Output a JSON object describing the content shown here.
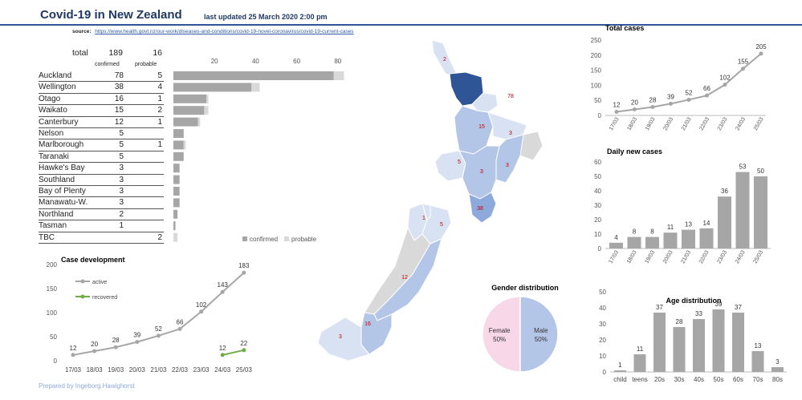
{
  "header": {
    "title": "Covid-19 in New Zealand",
    "updated": "last updated 25 March 2020  2:00 pm",
    "source_label": "source:",
    "source_url": "https://www.health.govt.nz/our-work/diseases-and-conditions/covid-19-novel-coronavirus/covid-19-current-cases"
  },
  "totals": {
    "label": "total",
    "confirmed": "189",
    "probable": "16",
    "confirmed_label": "confirmed",
    "probable_label": "probable"
  },
  "regions": [
    {
      "name": "Auckland",
      "confirmed": "78",
      "probable": "5"
    },
    {
      "name": "Wellington",
      "confirmed": "38",
      "probable": "4"
    },
    {
      "name": "Otago",
      "confirmed": "16",
      "probable": "1"
    },
    {
      "name": "Waikato",
      "confirmed": "15",
      "probable": "2"
    },
    {
      "name": "Canterbury",
      "confirmed": "12",
      "probable": "1"
    },
    {
      "name": "Nelson",
      "confirmed": "5",
      "probable": ""
    },
    {
      "name": "Marlborough",
      "confirmed": "5",
      "probable": "1"
    },
    {
      "name": "Taranaki",
      "confirmed": "5",
      "probable": ""
    },
    {
      "name": "Hawke's Bay",
      "confirmed": "3",
      "probable": ""
    },
    {
      "name": "Southland",
      "confirmed": "3",
      "probable": ""
    },
    {
      "name": "Bay of Plenty",
      "confirmed": "3",
      "probable": ""
    },
    {
      "name": "Manawatu-W.",
      "confirmed": "3",
      "probable": ""
    },
    {
      "name": "Northland",
      "confirmed": "2",
      "probable": ""
    },
    {
      "name": "Tasman",
      "confirmed": "1",
      "probable": ""
    },
    {
      "name": "TBC",
      "confirmed": "",
      "probable": "2"
    }
  ],
  "map_labels": [
    {
      "text": "2",
      "region": "Northland"
    },
    {
      "text": "78",
      "region": "Auckland"
    },
    {
      "text": "15",
      "region": "Waikato"
    },
    {
      "text": "3",
      "region": "Bay of Plenty"
    },
    {
      "text": "5",
      "region": "Taranaki"
    },
    {
      "text": "3",
      "region": "Manawatu-W."
    },
    {
      "text": "3",
      "region": "Hawke's Bay"
    },
    {
      "text": "38",
      "region": "Wellington"
    },
    {
      "text": "1",
      "region": "Tasman"
    },
    {
      "text": "5",
      "region": "Marlborough"
    },
    {
      "text": "12",
      "region": "Canterbury"
    },
    {
      "text": "16",
      "region": "Otago"
    },
    {
      "text": "3",
      "region": "Southland"
    }
  ],
  "footer": "Prepared by Ingeborg Hawighorst",
  "colors": {
    "title": "#1f3864",
    "rule": "#2e5597",
    "bar_confirmed": "#a6a6a6",
    "bar_probable": "#d9d9d9",
    "active_line": "#a6a6a6",
    "recovered_line": "#70ad47",
    "female": "#f8d7e8",
    "male": "#b4c6e7",
    "map_dark": "#2f5597",
    "map_mid": "#8ea9db",
    "map_light": "#b4c6e7",
    "map_pale": "#d9e2f3",
    "map_none": "#d9d9d9",
    "map_label": "#c00000"
  },
  "chart_data": [
    {
      "type": "bar",
      "orientation": "horizontal",
      "categories": [
        "Auckland",
        "Wellington",
        "Otago",
        "Waikato",
        "Canterbury",
        "Nelson",
        "Marlborough",
        "Taranaki",
        "Hawke's Bay",
        "Southland",
        "Bay of Plenty",
        "Manawatu-W.",
        "Northland",
        "Tasman",
        "TBC"
      ],
      "series": [
        {
          "name": "confirmed",
          "values": [
            78,
            38,
            16,
            15,
            12,
            5,
            5,
            5,
            3,
            3,
            3,
            3,
            2,
            1,
            0
          ]
        },
        {
          "name": "probable",
          "values": [
            5,
            4,
            1,
            2,
            1,
            0,
            1,
            0,
            0,
            0,
            0,
            0,
            0,
            0,
            2
          ]
        }
      ],
      "xticks": [
        20,
        40,
        60,
        80,
        100
      ],
      "xlim": [
        0,
        100
      ],
      "legend": "bottom"
    },
    {
      "type": "line",
      "title": "Total cases",
      "categories": [
        "17/03",
        "18/03",
        "19/03",
        "20/03",
        "21/03",
        "22/03",
        "23/03",
        "24/03",
        "25/03"
      ],
      "values": [
        12,
        20,
        28,
        39,
        52,
        66,
        102,
        155,
        205
      ],
      "yticks": [
        0,
        50,
        100,
        150,
        200,
        250
      ],
      "ylim": [
        0,
        250
      ]
    },
    {
      "type": "bar",
      "title": "Daily new cases",
      "categories": [
        "17/03",
        "18/03",
        "19/03",
        "20/03",
        "21/03",
        "22/03",
        "23/03",
        "24/03",
        "25/03"
      ],
      "values": [
        4,
        8,
        8,
        11,
        13,
        14,
        36,
        53,
        50
      ],
      "yticks": [
        0,
        10,
        20,
        30,
        40,
        50,
        60
      ],
      "ylim": [
        0,
        60
      ]
    },
    {
      "type": "line",
      "title": "Case development",
      "categories": [
        "17/03",
        "18/03",
        "19/03",
        "20/03",
        "21/03",
        "22/03",
        "23/03",
        "24/03",
        "25/03"
      ],
      "series": [
        {
          "name": "active",
          "values": [
            12,
            20,
            28,
            39,
            52,
            66,
            102,
            143,
            183
          ]
        },
        {
          "name": "recovered",
          "values": [
            null,
            null,
            null,
            null,
            null,
            null,
            null,
            12,
            22
          ]
        }
      ],
      "yticks": [
        0,
        50,
        100,
        150,
        200
      ],
      "ylim": [
        0,
        200
      ],
      "legend": "top-left"
    },
    {
      "type": "pie",
      "title": "Gender distribution",
      "series": [
        {
          "name": "Female",
          "value": 50,
          "label": "Female\n50%"
        },
        {
          "name": "Male",
          "value": 50,
          "label": "Male\n50%"
        }
      ]
    },
    {
      "type": "bar",
      "title": "Age distribution",
      "categories": [
        "child",
        "teens",
        "20s",
        "30s",
        "40s",
        "50s",
        "60s",
        "70s",
        "80s"
      ],
      "values": [
        1,
        11,
        37,
        28,
        33,
        39,
        37,
        13,
        3
      ],
      "yticks": [
        0,
        10,
        20,
        30,
        40,
        50
      ],
      "ylim": [
        0,
        50
      ]
    }
  ]
}
